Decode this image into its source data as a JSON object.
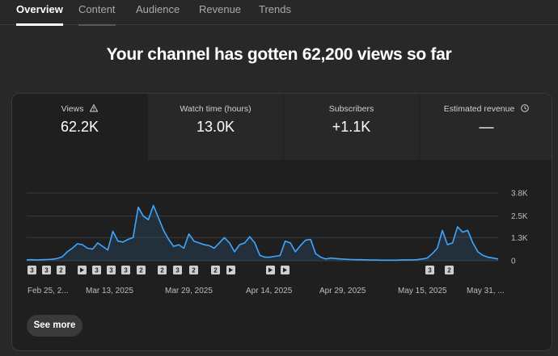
{
  "tabs": [
    "Overview",
    "Content",
    "Audience",
    "Revenue",
    "Trends"
  ],
  "headline": "Your channel has gotten 62,200 views so far",
  "metrics": [
    {
      "label": "Views",
      "value": "62.2K",
      "icon": "warning-icon"
    },
    {
      "label": "Watch time (hours)",
      "value": "13.0K"
    },
    {
      "label": "Subscribers",
      "value": "+1.1K"
    },
    {
      "label": "Estimated revenue",
      "value": "—",
      "icon": "clock-icon"
    }
  ],
  "chart_data": {
    "type": "area",
    "y_ticks": [
      "3.8K",
      "2.5K",
      "1.3K",
      "0"
    ],
    "ylim": [
      0,
      3800
    ],
    "x_labels": [
      "Feb 25, 2...",
      "Mar 13, 2025",
      "Mar 29, 2025",
      "Apr 14, 2025",
      "Apr 29, 2025",
      "May 15, 2025",
      "May 31, ..."
    ],
    "series": [
      {
        "values": [
          50,
          60,
          40,
          60,
          70,
          80,
          120,
          220,
          500,
          700,
          950,
          900,
          700,
          650,
          1000,
          800,
          600,
          1650,
          1100,
          1050,
          1200,
          1300,
          3000,
          2500,
          2300,
          3100,
          2400,
          1700,
          1200,
          800,
          900,
          700,
          1500,
          1100,
          1000,
          900,
          850,
          700,
          1000,
          1300,
          1000,
          500,
          900,
          1000,
          1350,
          1000,
          300,
          200,
          200,
          250,
          300,
          1100,
          1000,
          500,
          850,
          1150,
          1200,
          400,
          200,
          100,
          150,
          120,
          100,
          80,
          70,
          60,
          60,
          50,
          40,
          40,
          30,
          30,
          30,
          30,
          50,
          40,
          50,
          60,
          100,
          150,
          400,
          700,
          1700,
          900,
          1000,
          1900,
          1600,
          1700,
          1000,
          500,
          300,
          200,
          150,
          100
        ]
      }
    ],
    "markers": [
      "3",
      "3",
      "2",
      "play",
      "3",
      "3",
      "3",
      "2",
      "2",
      "3",
      "2",
      "2",
      "play",
      "play",
      "play",
      "3",
      "2"
    ],
    "grid": true
  },
  "see_more": "See more",
  "accent": "#3ea6ff"
}
